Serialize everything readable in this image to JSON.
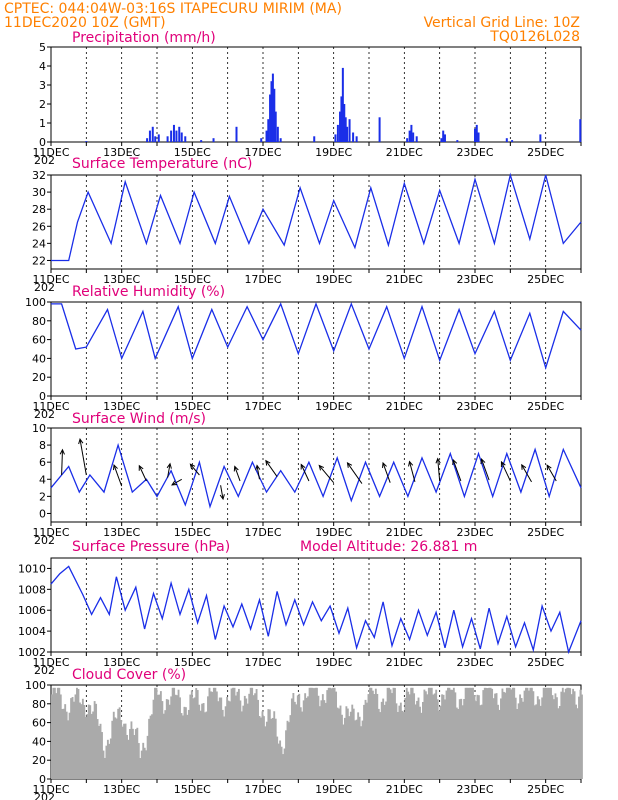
{
  "header": {
    "line1": "CPTEC:   044:04W-03:16S  ITAPECURU MIRIM (MA)",
    "line2": "11DEC2020 10Z (GMT)",
    "grid_note": "Vertical Grid Line: 10Z",
    "run_code": "TQ0126L028"
  },
  "colors": {
    "series": "#1a2ee8",
    "title": "#e0007a",
    "header": "#ff8000",
    "cloud": "#aaaaaa",
    "arrow": "#000000"
  },
  "x_axis": {
    "tick_labels": [
      "11DEC",
      "13DEC",
      "15DEC",
      "17DEC",
      "19DEC",
      "21DEC",
      "23DEC",
      "25DEC"
    ],
    "corner_label": "202",
    "range_days": [
      0,
      15
    ]
  },
  "chart_data": [
    {
      "id": "precip",
      "type": "bar",
      "title": "Precipitation (mm/h)",
      "ylim": [
        0,
        5
      ],
      "yticks": [
        0,
        1,
        2,
        3,
        4,
        5
      ],
      "bars": [
        [
          1.0,
          0.05
        ],
        [
          2.72,
          0.2
        ],
        [
          2.8,
          0.6
        ],
        [
          2.88,
          0.8
        ],
        [
          2.95,
          0.3
        ],
        [
          3.05,
          0.4
        ],
        [
          3.3,
          0.3
        ],
        [
          3.4,
          0.6
        ],
        [
          3.48,
          0.9
        ],
        [
          3.55,
          0.6
        ],
        [
          3.63,
          0.8
        ],
        [
          3.7,
          0.5
        ],
        [
          3.8,
          0.3
        ],
        [
          4.25,
          0.1
        ],
        [
          4.6,
          0.2
        ],
        [
          5.25,
          0.8
        ],
        [
          5.95,
          0.2
        ],
        [
          6.1,
          0.6
        ],
        [
          6.15,
          1.2
        ],
        [
          6.2,
          2.5
        ],
        [
          6.24,
          3.2
        ],
        [
          6.28,
          3.6
        ],
        [
          6.32,
          2.8
        ],
        [
          6.36,
          1.6
        ],
        [
          6.42,
          0.8
        ],
        [
          6.5,
          0.2
        ],
        [
          7.45,
          0.3
        ],
        [
          8.05,
          0.4
        ],
        [
          8.12,
          0.9
        ],
        [
          8.18,
          1.6
        ],
        [
          8.22,
          2.4
        ],
        [
          8.26,
          3.9
        ],
        [
          8.3,
          2.0
        ],
        [
          8.34,
          1.3
        ],
        [
          8.38,
          0.8
        ],
        [
          8.45,
          1.2
        ],
        [
          8.55,
          0.5
        ],
        [
          8.65,
          0.3
        ],
        [
          9.3,
          1.3
        ],
        [
          10.08,
          0.2
        ],
        [
          10.15,
          0.6
        ],
        [
          10.2,
          0.9
        ],
        [
          10.25,
          0.5
        ],
        [
          10.35,
          0.3
        ],
        [
          11.05,
          0.2
        ],
        [
          11.1,
          0.6
        ],
        [
          11.15,
          0.4
        ],
        [
          11.5,
          0.1
        ],
        [
          12.0,
          0.7
        ],
        [
          12.05,
          0.9
        ],
        [
          12.1,
          0.5
        ],
        [
          12.9,
          0.2
        ],
        [
          13.05,
          0.1
        ],
        [
          13.85,
          0.4
        ],
        [
          14.98,
          1.2
        ]
      ]
    },
    {
      "id": "temp",
      "type": "line",
      "title": "Surface Temperature (nC)",
      "ylim": [
        21,
        32
      ],
      "yticks": [
        22,
        24,
        26,
        28,
        30,
        32
      ],
      "x": [
        0,
        0.5,
        0.75,
        1.05,
        1.7,
        2.1,
        2.7,
        3.1,
        3.65,
        4.05,
        4.65,
        5.05,
        5.6,
        6.0,
        6.6,
        7.05,
        7.6,
        8.0,
        8.6,
        9.05,
        9.55,
        10.0,
        10.55,
        11.0,
        11.55,
        12.0,
        12.55,
        13.0,
        13.55,
        14.0,
        14.5,
        15.0
      ],
      "y": [
        22,
        22,
        26.5,
        30,
        24,
        31.2,
        24,
        29.6,
        24,
        30,
        24,
        29.5,
        24,
        28,
        23.8,
        30.5,
        24,
        29,
        23.5,
        30.5,
        23.8,
        31,
        24,
        30.2,
        24,
        31.5,
        24,
        32,
        24.5,
        32,
        24,
        26.5
      ]
    },
    {
      "id": "rh",
      "type": "line",
      "title": "Relative Humidity (%)",
      "ylim": [
        0,
        100
      ],
      "yticks": [
        0,
        20,
        40,
        60,
        80,
        100
      ],
      "x": [
        0,
        0.3,
        0.7,
        1.0,
        1.6,
        2.0,
        2.6,
        2.95,
        3.6,
        4.0,
        4.55,
        5.0,
        5.55,
        6.0,
        6.5,
        7.0,
        7.5,
        8.0,
        8.5,
        9.0,
        9.5,
        10.0,
        10.5,
        11.0,
        11.55,
        12.0,
        12.55,
        13.0,
        13.55,
        14.0,
        14.5,
        15.0
      ],
      "y": [
        98,
        98,
        50,
        52,
        92,
        40,
        90,
        40,
        95,
        40,
        92,
        52,
        95,
        60,
        98,
        45,
        98,
        48,
        98,
        50,
        95,
        40,
        95,
        38,
        92,
        45,
        90,
        38,
        88,
        30,
        90,
        70
      ]
    },
    {
      "id": "wind",
      "type": "line",
      "title": "Surface Wind (m/s)",
      "ylim": [
        -1,
        10
      ],
      "yticks": [
        0,
        2,
        4,
        6,
        8,
        10
      ],
      "x": [
        0,
        0.5,
        0.8,
        1.1,
        1.5,
        1.9,
        2.3,
        2.7,
        3.0,
        3.4,
        3.8,
        4.2,
        4.5,
        4.9,
        5.3,
        5.7,
        6.1,
        6.5,
        6.9,
        7.3,
        7.7,
        8.1,
        8.5,
        8.9,
        9.3,
        9.7,
        10.1,
        10.5,
        10.9,
        11.3,
        11.7,
        12.1,
        12.5,
        12.9,
        13.3,
        13.7,
        14.1,
        14.5,
        15.0
      ],
      "y": [
        3,
        5.5,
        2.5,
        4.5,
        2.5,
        8,
        2.5,
        4,
        2,
        5,
        1,
        6,
        0.8,
        5.5,
        2,
        6,
        2.5,
        5,
        2.5,
        6,
        2,
        6.5,
        1.5,
        6,
        2,
        6,
        2,
        6.5,
        2.5,
        7,
        2,
        7,
        2,
        7,
        2.5,
        7.5,
        2,
        7.5,
        3
      ],
      "vectors": [
        [
          0.3,
          4.5,
          88,
          1.8
        ],
        [
          1.0,
          4.5,
          100,
          2.6
        ],
        [
          2.0,
          3.2,
          110,
          1.6
        ],
        [
          2.7,
          3.8,
          115,
          1.2
        ],
        [
          3.3,
          4.2,
          80,
          1.0
        ],
        [
          3.7,
          4.0,
          210,
          0.8
        ],
        [
          4.2,
          4.5,
          130,
          1.0
        ],
        [
          4.8,
          3.3,
          280,
          1.0
        ],
        [
          5.35,
          3.8,
          110,
          1.1
        ],
        [
          5.9,
          4.0,
          100,
          1.0
        ],
        [
          6.4,
          4.3,
          125,
          1.4
        ],
        [
          7.3,
          3.8,
          115,
          1.3
        ],
        [
          8.0,
          3.6,
          130,
          1.6
        ],
        [
          8.8,
          3.5,
          125,
          1.8
        ],
        [
          9.6,
          3.6,
          110,
          1.5
        ],
        [
          10.3,
          3.7,
          105,
          1.5
        ],
        [
          11.0,
          3.8,
          95,
          1.6
        ],
        [
          11.6,
          3.8,
          110,
          1.6
        ],
        [
          12.4,
          3.9,
          110,
          1.6
        ],
        [
          13.0,
          3.8,
          115,
          1.5
        ],
        [
          13.6,
          3.7,
          120,
          1.4
        ],
        [
          14.3,
          3.8,
          120,
          1.3
        ]
      ]
    },
    {
      "id": "pres",
      "type": "line",
      "title": "Surface Pressure (hPa)",
      "subtitle": "Model Altitude: 26.881  m",
      "ylim": [
        1002,
        1011
      ],
      "yticks": [
        1002,
        1004,
        1006,
        1008,
        1010
      ],
      "x": [
        0,
        0.25,
        0.5,
        0.9,
        1.15,
        1.4,
        1.65,
        1.85,
        2.1,
        2.4,
        2.65,
        2.9,
        3.15,
        3.4,
        3.65,
        3.9,
        4.15,
        4.4,
        4.65,
        4.9,
        5.15,
        5.4,
        5.65,
        5.9,
        6.15,
        6.4,
        6.65,
        6.9,
        7.15,
        7.4,
        7.65,
        7.9,
        8.15,
        8.4,
        8.65,
        8.9,
        9.15,
        9.4,
        9.65,
        9.9,
        10.15,
        10.4,
        10.65,
        10.9,
        11.15,
        11.4,
        11.65,
        11.9,
        12.15,
        12.4,
        12.65,
        12.9,
        13.15,
        13.4,
        13.65,
        13.9,
        14.15,
        14.4,
        14.65,
        15.0
      ],
      "y": [
        1008.5,
        1009.5,
        1010.2,
        1007.5,
        1005.6,
        1007.2,
        1005.6,
        1009.2,
        1006.0,
        1008.2,
        1004.2,
        1007.6,
        1005.2,
        1008.6,
        1005.6,
        1008.0,
        1004.8,
        1007.4,
        1003.2,
        1006.4,
        1004.4,
        1006.6,
        1004.2,
        1007.0,
        1003.5,
        1007.8,
        1004.6,
        1007.0,
        1004.6,
        1006.8,
        1005.0,
        1006.4,
        1003.8,
        1006.2,
        1002.4,
        1005.0,
        1003.4,
        1006.8,
        1002.6,
        1005.2,
        1003.2,
        1006.0,
        1003.6,
        1005.8,
        1002.4,
        1006.0,
        1002.5,
        1005.2,
        1002.3,
        1006.2,
        1002.8,
        1005.4,
        1002.5,
        1004.8,
        1002.2,
        1006.4,
        1004.0,
        1005.8,
        1002.0,
        1005.0
      ]
    },
    {
      "id": "cloud",
      "type": "bar",
      "title": "Cloud Cover (%)",
      "ylim": [
        0,
        100
      ],
      "yticks": [
        0,
        20,
        40,
        60,
        80,
        100
      ],
      "profile_x": [
        0,
        0.5,
        1.0,
        1.5,
        2.0,
        2.5,
        3.0,
        3.5,
        4.0,
        4.5,
        5.0,
        5.5,
        6.0,
        6.5,
        7.0,
        7.5,
        8.0,
        8.5,
        9.0,
        9.5,
        10.0,
        10.5,
        11.0,
        11.5,
        12.0,
        12.5,
        13.0,
        13.5,
        14.0,
        14.5,
        15.0
      ],
      "profile_y": [
        90,
        80,
        85,
        40,
        70,
        30,
        90,
        85,
        80,
        90,
        85,
        92,
        75,
        40,
        90,
        95,
        92,
        60,
        90,
        88,
        85,
        90,
        92,
        90,
        95,
        92,
        95,
        90,
        95,
        92,
        95
      ]
    }
  ]
}
